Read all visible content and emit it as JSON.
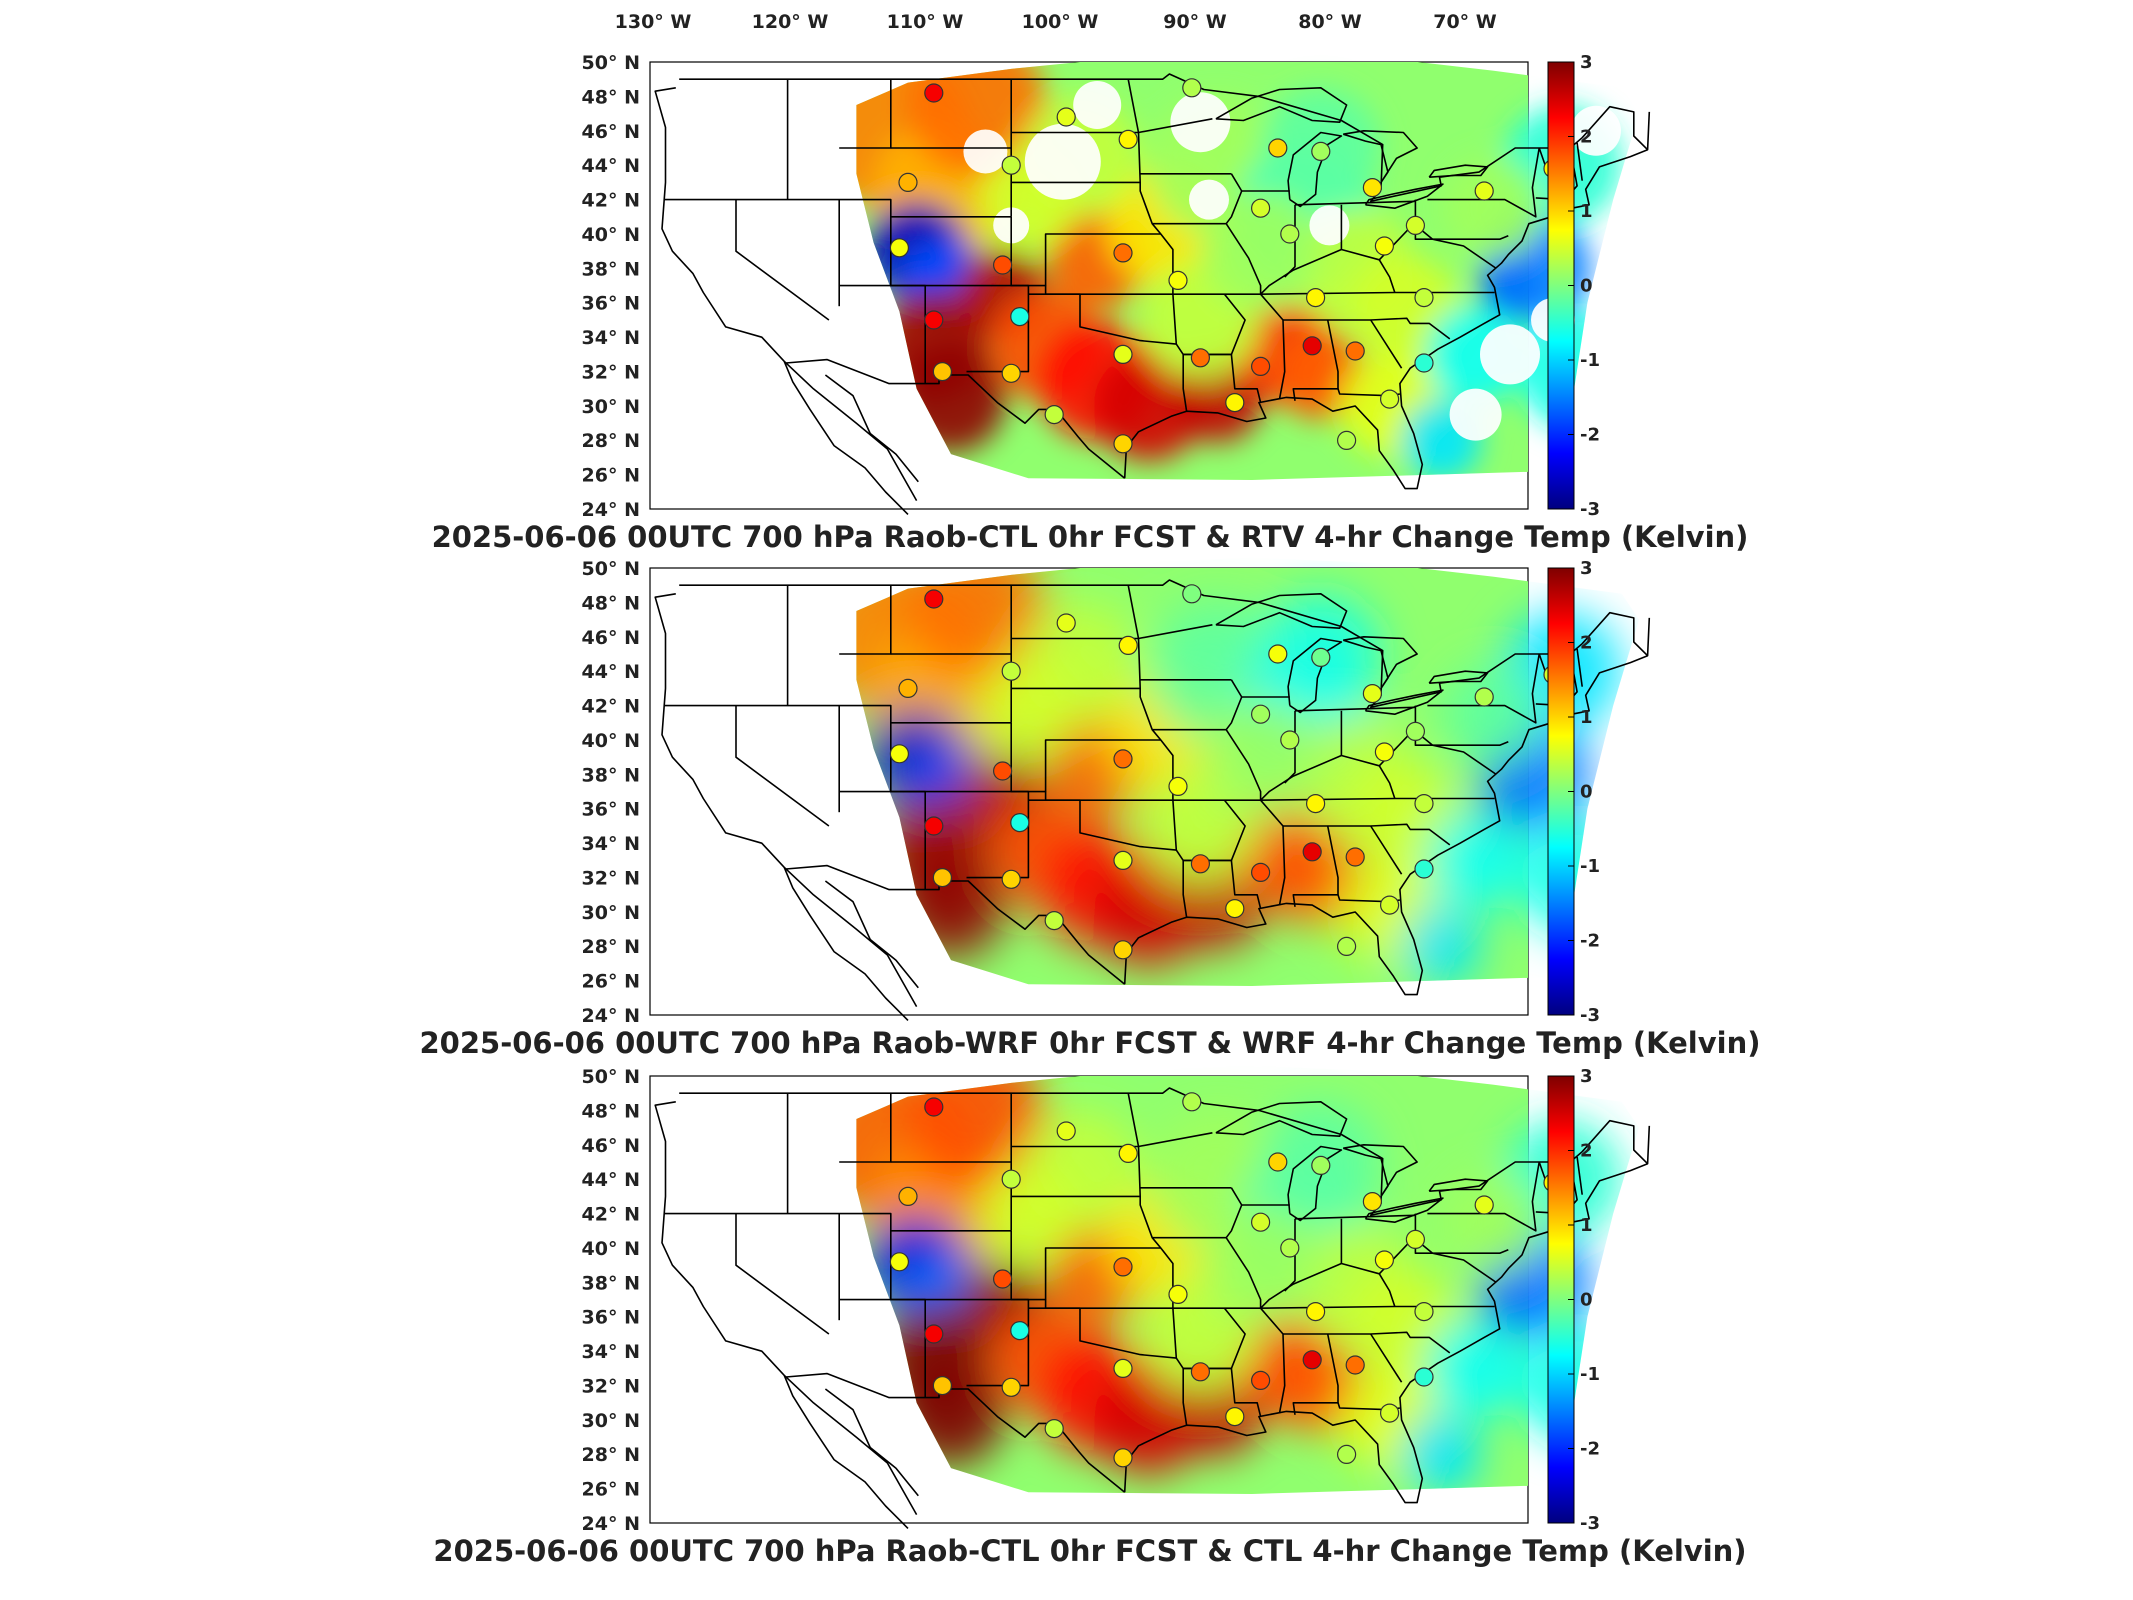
{
  "lon_labels": [
    "130° W",
    "120° W",
    "110° W",
    "100° W",
    "90° W",
    "80° W",
    "70° W"
  ],
  "lat_labels": [
    "50° N",
    "48° N",
    "46° N",
    "44° N",
    "42° N",
    "40° N",
    "38° N",
    "36° N",
    "34° N",
    "32° N",
    "30° N",
    "28° N",
    "26° N",
    "24° N"
  ],
  "colorbar": {
    "min": -3,
    "max": 3,
    "ticks": [
      "3",
      "2",
      "1",
      "0",
      "-1",
      "-2",
      "-3"
    ],
    "colormap": "jet",
    "colors": [
      "#00007f",
      "#0000ff",
      "#007fff",
      "#00ffff",
      "#7fff7f",
      "#ffff00",
      "#ff7f00",
      "#ff0000",
      "#7f0000"
    ]
  },
  "panels": [
    {
      "title": "2025-06-06 00UTC 700 hPa Raob-CTL 0hr FCST & RTV 4-hr Change Temp (Kelvin)",
      "variant": "rtv"
    },
    {
      "title": "2025-06-06 00UTC 700 hPa Raob-WRF 0hr FCST & WRF 4-hr Change Temp (Kelvin)",
      "variant": "wrf"
    },
    {
      "title": "2025-06-06 00UTC 700 hPa Raob-CTL 0hr FCST & CTL 4-hr Change Temp (Kelvin)",
      "variant": "ctl"
    }
  ],
  "stations": [
    {
      "lon": -108.5,
      "lat": 48.2,
      "value": 2.3
    },
    {
      "lon": -100.8,
      "lat": 46.8,
      "value": 0.6
    },
    {
      "lon": -97.2,
      "lat": 45.5,
      "value": 0.8
    },
    {
      "lon": -93.5,
      "lat": 48.5,
      "value": 0.3
    },
    {
      "lon": -104.0,
      "lat": 44.0,
      "value": 0.4
    },
    {
      "lon": -110.0,
      "lat": 43.0,
      "value": 1.2
    },
    {
      "lon": -88.5,
      "lat": 45.0,
      "value": 1.0
    },
    {
      "lon": -86.0,
      "lat": 44.8,
      "value": 0.2
    },
    {
      "lon": -89.5,
      "lat": 41.5,
      "value": 0.5
    },
    {
      "lon": -83.0,
      "lat": 42.7,
      "value": 0.9
    },
    {
      "lon": -87.8,
      "lat": 40.0,
      "value": 0.3
    },
    {
      "lon": -80.5,
      "lat": 40.5,
      "value": 0.5
    },
    {
      "lon": -76.5,
      "lat": 42.5,
      "value": 0.6
    },
    {
      "lon": -72.5,
      "lat": 43.8,
      "value": 0.8
    },
    {
      "lon": -110.5,
      "lat": 39.2,
      "value": 0.7
    },
    {
      "lon": -104.5,
      "lat": 38.2,
      "value": 1.8
    },
    {
      "lon": -97.5,
      "lat": 38.9,
      "value": 1.6
    },
    {
      "lon": -94.3,
      "lat": 37.3,
      "value": 0.7
    },
    {
      "lon": -108.5,
      "lat": 35.0,
      "value": 2.3
    },
    {
      "lon": -103.5,
      "lat": 35.2,
      "value": -0.6
    },
    {
      "lon": -97.5,
      "lat": 33.0,
      "value": 0.6
    },
    {
      "lon": -93.0,
      "lat": 32.8,
      "value": 1.6
    },
    {
      "lon": -89.5,
      "lat": 32.3,
      "value": 1.8
    },
    {
      "lon": -86.5,
      "lat": 33.5,
      "value": 2.4
    },
    {
      "lon": -84.0,
      "lat": 33.2,
      "value": 1.6
    },
    {
      "lon": -86.3,
      "lat": 36.3,
      "value": 0.8
    },
    {
      "lon": -82.3,
      "lat": 39.3,
      "value": 0.7
    },
    {
      "lon": -80.0,
      "lat": 36.3,
      "value": 0.4
    },
    {
      "lon": -80.0,
      "lat": 32.5,
      "value": -0.5
    },
    {
      "lon": -82.0,
      "lat": 30.4,
      "value": 0.5
    },
    {
      "lon": -84.5,
      "lat": 28.0,
      "value": 0.3
    },
    {
      "lon": -108.0,
      "lat": 32.0,
      "value": 1.1
    },
    {
      "lon": -104.0,
      "lat": 31.9,
      "value": 1.0
    },
    {
      "lon": -101.5,
      "lat": 29.5,
      "value": 0.4
    },
    {
      "lon": -97.5,
      "lat": 27.8,
      "value": 1.0
    },
    {
      "lon": -91.0,
      "lat": 30.2,
      "value": 0.8
    }
  ]
}
